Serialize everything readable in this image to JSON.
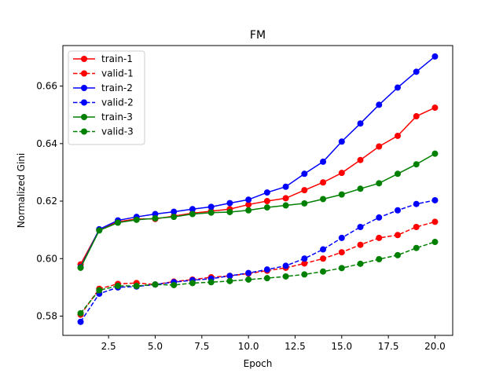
{
  "chart_data": {
    "type": "line",
    "title": "FM",
    "xlabel": "Epoch",
    "ylabel": "Normalized Gini",
    "xlim": [
      0.05,
      20.95
    ],
    "ylim": [
      0.5733,
      0.6741
    ],
    "xticks": [
      2.5,
      5.0,
      7.5,
      10.0,
      12.5,
      15.0,
      17.5,
      20.0
    ],
    "xtick_labels": [
      "2.5",
      "5.0",
      "7.5",
      "10.0",
      "12.5",
      "15.0",
      "17.5",
      "20.0"
    ],
    "yticks": [
      0.58,
      0.6,
      0.62,
      0.64,
      0.66
    ],
    "ytick_labels": [
      "0.58",
      "0.60",
      "0.62",
      "0.64",
      "0.66"
    ],
    "grid": false,
    "legend_position": "top-left",
    "x": [
      1,
      2,
      3,
      4,
      5,
      6,
      7,
      8,
      9,
      10,
      11,
      12,
      13,
      14,
      15,
      16,
      17,
      18,
      19,
      20
    ],
    "series": [
      {
        "name": "train-1",
        "color": "#ff0000",
        "dashed": false,
        "values": [
          0.598,
          0.61,
          0.6128,
          0.6138,
          0.6138,
          0.6148,
          0.6158,
          0.6165,
          0.6172,
          0.6188,
          0.62,
          0.621,
          0.6238,
          0.6265,
          0.6298,
          0.6343,
          0.639,
          0.6427,
          0.6495,
          0.6525
        ]
      },
      {
        "name": "valid-1",
        "color": "#ff0000",
        "dashed": true,
        "values": [
          0.5805,
          0.5895,
          0.5912,
          0.5915,
          0.591,
          0.592,
          0.5927,
          0.5935,
          0.594,
          0.5948,
          0.5958,
          0.5968,
          0.5983,
          0.6,
          0.6022,
          0.6048,
          0.6072,
          0.6082,
          0.611,
          0.6128
        ]
      },
      {
        "name": "train-2",
        "color": "#0000ff",
        "dashed": false,
        "values": [
          0.597,
          0.6102,
          0.6133,
          0.6145,
          0.6155,
          0.6163,
          0.6172,
          0.618,
          0.6193,
          0.6205,
          0.623,
          0.625,
          0.6295,
          0.6337,
          0.6407,
          0.647,
          0.6535,
          0.6595,
          0.665,
          0.6703
        ]
      },
      {
        "name": "valid-2",
        "color": "#0000ff",
        "dashed": true,
        "values": [
          0.578,
          0.5878,
          0.59,
          0.5903,
          0.591,
          0.5918,
          0.5925,
          0.593,
          0.594,
          0.595,
          0.5962,
          0.5975,
          0.6,
          0.6032,
          0.6072,
          0.611,
          0.6143,
          0.6168,
          0.619,
          0.6203
        ]
      },
      {
        "name": "train-3",
        "color": "#008000",
        "dashed": false,
        "values": [
          0.5968,
          0.6098,
          0.6125,
          0.6135,
          0.614,
          0.6145,
          0.6155,
          0.616,
          0.6162,
          0.6168,
          0.6178,
          0.6185,
          0.6192,
          0.6207,
          0.6223,
          0.6243,
          0.6262,
          0.6295,
          0.6328,
          0.6365
        ]
      },
      {
        "name": "valid-3",
        "color": "#008000",
        "dashed": true,
        "values": [
          0.581,
          0.589,
          0.5905,
          0.5905,
          0.591,
          0.5908,
          0.5915,
          0.5918,
          0.5922,
          0.5927,
          0.5932,
          0.5938,
          0.5945,
          0.5955,
          0.5967,
          0.5982,
          0.5998,
          0.6012,
          0.6037,
          0.6058
        ]
      }
    ]
  }
}
